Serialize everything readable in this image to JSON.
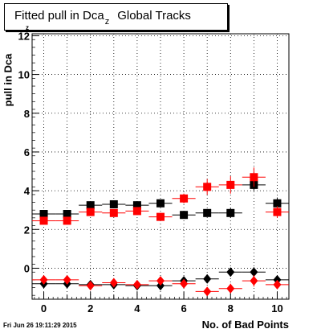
{
  "title": {
    "main": "Fitted pull in Dca",
    "subscript": "z",
    "suffix": "Global Tracks"
  },
  "ylabel": "pull in Dca",
  "ylabel_subscript": "z",
  "xlabel": "No. of Bad Points",
  "timestamp": "Fri Jun 26 19:11:29 2015",
  "colors": {
    "black": "#000000",
    "red": "#ff0000"
  },
  "chart_data": {
    "type": "scatter",
    "x_ticks": [
      0,
      2,
      4,
      6,
      8,
      10
    ],
    "y_ticks": [
      0,
      2,
      4,
      6,
      8,
      10,
      12
    ],
    "y_tick_labels": [
      "0",
      "2",
      "4",
      "6",
      "8",
      "10",
      "12"
    ],
    "xlim": [
      -0.5,
      10.5
    ],
    "ylim": [
      -1.6,
      12.1
    ],
    "grid": true,
    "series": [
      {
        "marker": "square",
        "color": "#000000",
        "x": [
          0,
          1,
          2,
          3,
          4,
          5,
          6,
          7,
          8,
          9,
          10
        ],
        "y": [
          2.8,
          2.8,
          3.25,
          3.3,
          3.25,
          3.35,
          2.75,
          2.85,
          2.85,
          4.3,
          3.35
        ],
        "yerr": [
          0.1,
          0.1,
          0.12,
          0.12,
          0.12,
          0.15,
          0.15,
          0.2,
          0.25,
          0.3,
          0.3
        ]
      },
      {
        "marker": "square",
        "color": "#ff0000",
        "x": [
          0,
          1,
          2,
          3,
          4,
          5,
          6,
          7,
          8,
          9,
          10
        ],
        "y": [
          2.45,
          2.45,
          2.9,
          2.85,
          2.95,
          2.65,
          3.6,
          4.2,
          4.3,
          4.7,
          2.9
        ],
        "yerr": [
          0.1,
          0.1,
          0.15,
          0.15,
          0.2,
          0.2,
          0.25,
          0.4,
          0.45,
          0.5,
          0.3
        ]
      },
      {
        "marker": "diamond",
        "color": "#000000",
        "x": [
          0,
          1,
          2,
          3,
          4,
          5,
          6,
          7,
          8,
          9,
          10
        ],
        "y": [
          -0.8,
          -0.8,
          -0.85,
          -0.85,
          -0.9,
          -0.9,
          -0.65,
          -0.55,
          -0.2,
          -0.2,
          -0.6
        ],
        "yerr": [
          0.05,
          0.05,
          0.05,
          0.05,
          0.05,
          0.08,
          0.1,
          0.12,
          0.15,
          0.25,
          0.15
        ]
      },
      {
        "marker": "diamond",
        "color": "#ff0000",
        "x": [
          0,
          1,
          2,
          3,
          4,
          5,
          6,
          7,
          8,
          9,
          10
        ],
        "y": [
          -0.6,
          -0.6,
          -0.9,
          -0.75,
          -0.85,
          -0.65,
          -0.8,
          -1.2,
          -1.05,
          -0.65,
          -0.85
        ],
        "yerr": [
          0.05,
          0.05,
          0.08,
          0.08,
          0.08,
          0.1,
          0.15,
          0.2,
          0.25,
          0.3,
          0.15
        ]
      }
    ]
  }
}
